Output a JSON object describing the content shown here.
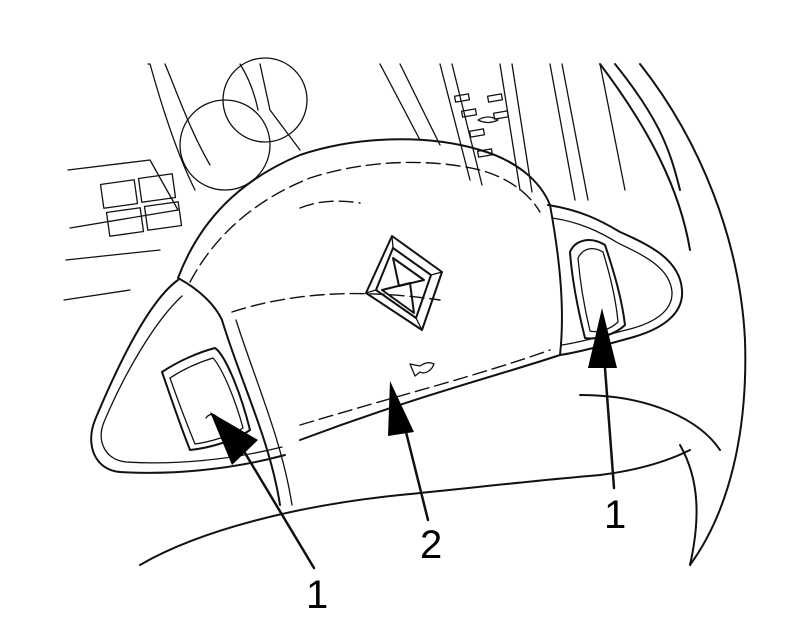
{
  "figure": {
    "callouts": [
      {
        "id": "left-button",
        "label": "1"
      },
      {
        "id": "center-pad",
        "label": "2"
      },
      {
        "id": "right-button",
        "label": "1"
      }
    ],
    "colors": {
      "ink": "#111111",
      "background": "#ffffff"
    },
    "icons": [
      "diamond-logo-icon",
      "horn-icon",
      "cruise-button-icon"
    ]
  }
}
